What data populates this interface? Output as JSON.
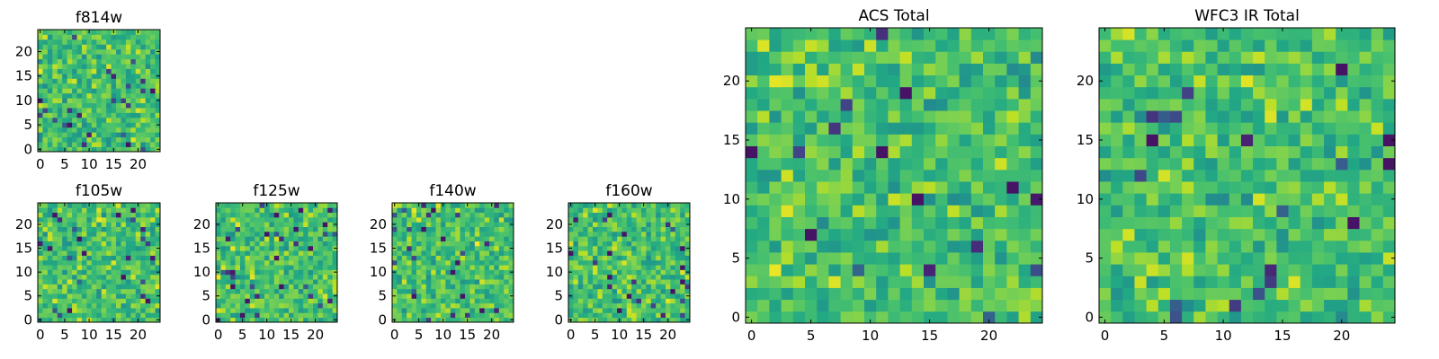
{
  "chart_data": [
    {
      "type": "heatmap",
      "title": "f814w",
      "seed": 11,
      "nx": 25,
      "ny": 25,
      "xlim": [
        -0.5,
        24.5
      ],
      "ylim": [
        -0.5,
        24.5
      ],
      "origin": "lower",
      "xticks": [
        0,
        5,
        10,
        15,
        20
      ],
      "yticks": [
        0,
        5,
        10,
        15,
        20
      ],
      "colormap": "viridis",
      "grid": false,
      "legend": "none"
    },
    {
      "type": "heatmap",
      "title": "f105w",
      "seed": 23,
      "nx": 25,
      "ny": 25,
      "xlim": [
        -0.5,
        24.5
      ],
      "ylim": [
        -0.5,
        24.5
      ],
      "origin": "lower",
      "xticks": [
        0,
        5,
        10,
        15,
        20
      ],
      "yticks": [
        0,
        5,
        10,
        15,
        20
      ],
      "colormap": "viridis",
      "grid": false,
      "legend": "none"
    },
    {
      "type": "heatmap",
      "title": "f125w",
      "seed": 37,
      "nx": 25,
      "ny": 25,
      "xlim": [
        -0.5,
        24.5
      ],
      "ylim": [
        -0.5,
        24.5
      ],
      "origin": "lower",
      "xticks": [
        0,
        5,
        10,
        15,
        20
      ],
      "yticks": [
        0,
        5,
        10,
        15,
        20
      ],
      "colormap": "viridis",
      "grid": false,
      "legend": "none"
    },
    {
      "type": "heatmap",
      "title": "f140w",
      "seed": 41,
      "nx": 25,
      "ny": 25,
      "xlim": [
        -0.5,
        24.5
      ],
      "ylim": [
        -0.5,
        24.5
      ],
      "origin": "lower",
      "xticks": [
        0,
        5,
        10,
        15,
        20
      ],
      "yticks": [
        0,
        5,
        10,
        15,
        20
      ],
      "colormap": "viridis",
      "grid": false,
      "legend": "none"
    },
    {
      "type": "heatmap",
      "title": "f160w",
      "seed": 53,
      "nx": 25,
      "ny": 25,
      "xlim": [
        -0.5,
        24.5
      ],
      "ylim": [
        -0.5,
        24.5
      ],
      "origin": "lower",
      "xticks": [
        0,
        5,
        10,
        15,
        20
      ],
      "yticks": [
        0,
        5,
        10,
        15,
        20
      ],
      "colormap": "viridis",
      "grid": false,
      "legend": "none"
    },
    {
      "type": "heatmap",
      "title": "ACS Total",
      "seed": 67,
      "nx": 25,
      "ny": 25,
      "xlim": [
        -0.5,
        24.5
      ],
      "ylim": [
        -0.5,
        24.5
      ],
      "origin": "lower",
      "xticks": [
        0,
        5,
        10,
        15,
        20
      ],
      "yticks": [
        0,
        5,
        10,
        15,
        20
      ],
      "colormap": "viridis",
      "grid": false,
      "legend": "none"
    },
    {
      "type": "heatmap",
      "title": "WFC3 IR Total",
      "seed": 79,
      "nx": 25,
      "ny": 25,
      "xlim": [
        -0.5,
        24.5
      ],
      "ylim": [
        -0.5,
        24.5
      ],
      "origin": "lower",
      "xticks": [
        0,
        5,
        10,
        15,
        20
      ],
      "yticks": [
        0,
        5,
        10,
        15,
        20
      ],
      "colormap": "viridis",
      "grid": false,
      "legend": "none"
    }
  ]
}
